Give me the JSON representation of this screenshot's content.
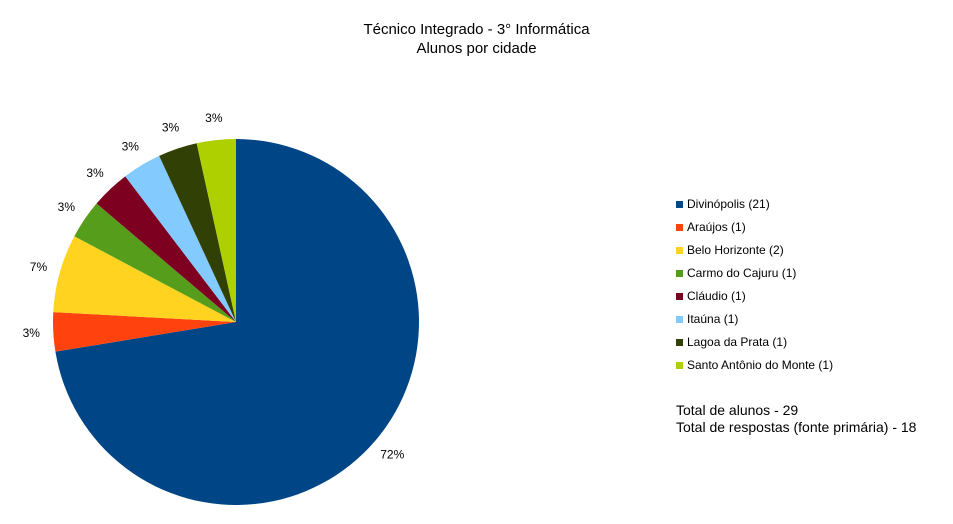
{
  "chart_data": {
    "type": "pie",
    "title": "Técnico Integrado - 3° Informática",
    "subtitle": "Alunos por cidade",
    "categories": [
      "Divinópolis (21)",
      "Araújos (1)",
      "Belo Horizonte (2)",
      "Carmo do Cajuru (1)",
      "Cláudio (1)",
      "Itaúna (1)",
      "Lagoa da Prata (1)",
      "Santo Antônio do Monte (1)"
    ],
    "values": [
      21,
      1,
      2,
      1,
      1,
      1,
      1,
      1
    ],
    "data_labels": [
      "72%",
      "3%",
      "7%",
      "3%",
      "3%",
      "3%",
      "3%",
      "3%"
    ],
    "colors": [
      "#004586",
      "#ff420e",
      "#ffd320",
      "#579d1c",
      "#7e0021",
      "#83caff",
      "#314004",
      "#aecf00"
    ],
    "legend_position": "right",
    "start": "top, clockwise"
  },
  "totals": {
    "students": "Total de alunos - 29",
    "responses": "Total de respostas (fonte primária) - 18"
  }
}
